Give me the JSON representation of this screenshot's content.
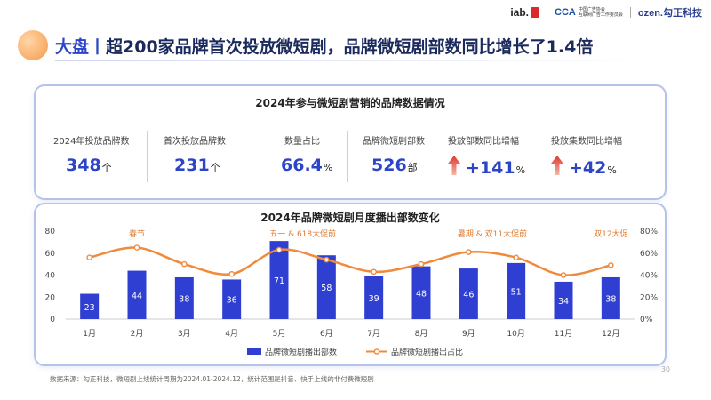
{
  "header": {
    "logo_iab": "iab.",
    "logo_cca": "CCA",
    "logo_cca_line1": "中国广告协会",
    "logo_cca_line2": "互联网广告工作委员会",
    "logo_ozen": "ozen.勾正科技"
  },
  "title": {
    "prefix": "大盘丨",
    "main": "超200家品牌首次投放微短剧，品牌微短剧部数同比增长了1.4倍"
  },
  "stats_card": {
    "title": "2024年参与微短剧营销的品牌数据情况",
    "items": [
      {
        "label": "2024年投放品牌数",
        "value": "348",
        "unit": "个"
      },
      {
        "label": "首次投放品牌数",
        "value": "231",
        "unit": "个"
      },
      {
        "label": "数量占比",
        "value": "66.4",
        "unit": "%"
      },
      {
        "label": "品牌微短剧部数",
        "value": "526",
        "unit": "部"
      },
      {
        "label": "投放部数同比增幅",
        "value": "+141",
        "unit": "%"
      },
      {
        "label": "投放集数同比增幅",
        "value": "+42",
        "unit": "%"
      }
    ],
    "colors": {
      "accent": "#2c45c8",
      "arrow": "#e0352b"
    }
  },
  "chart_data": {
    "type": "bar",
    "title": "2024年品牌微短剧月度播出部数变化",
    "categories": [
      "1月",
      "2月",
      "3月",
      "4月",
      "5月",
      "6月",
      "7月",
      "8月",
      "9月",
      "10月",
      "11月",
      "12月"
    ],
    "series": [
      {
        "name": "品牌微短剧播出部数",
        "type": "bar",
        "axis": "left",
        "color": "#2f3fd1",
        "values": [
          23,
          44,
          38,
          36,
          71,
          58,
          39,
          48,
          46,
          51,
          34,
          38
        ]
      },
      {
        "name": "品牌微短剧播出占比",
        "type": "line",
        "axis": "right",
        "color": "#f08a3c",
        "values": [
          56,
          65,
          50,
          41,
          63,
          54,
          43,
          50,
          61,
          56,
          40,
          49
        ]
      }
    ],
    "ylim_left": [
      0,
      80
    ],
    "yticks_left": [
      "0",
      "20",
      "40",
      "60",
      "80"
    ],
    "ylim_right": [
      0,
      80
    ],
    "yticks_right": [
      "0%",
      "20%",
      "40%",
      "60%",
      "80%"
    ],
    "annotations": [
      {
        "text": "春节",
        "month_index": 1
      },
      {
        "text": "五一 & 618大促前",
        "month_index": 4.5
      },
      {
        "text": "暑期 & 双11大促前",
        "month_index": 8.5
      },
      {
        "text": "双12大促",
        "month_index": 11
      }
    ],
    "grid": true,
    "legend_position": "bottom"
  },
  "footer": {
    "source": "数据来源：勾正科技，微短剧上线统计周期为2024.01-2024.12，统计范围是抖音、快手上线的非付费微短剧",
    "page": "30"
  }
}
